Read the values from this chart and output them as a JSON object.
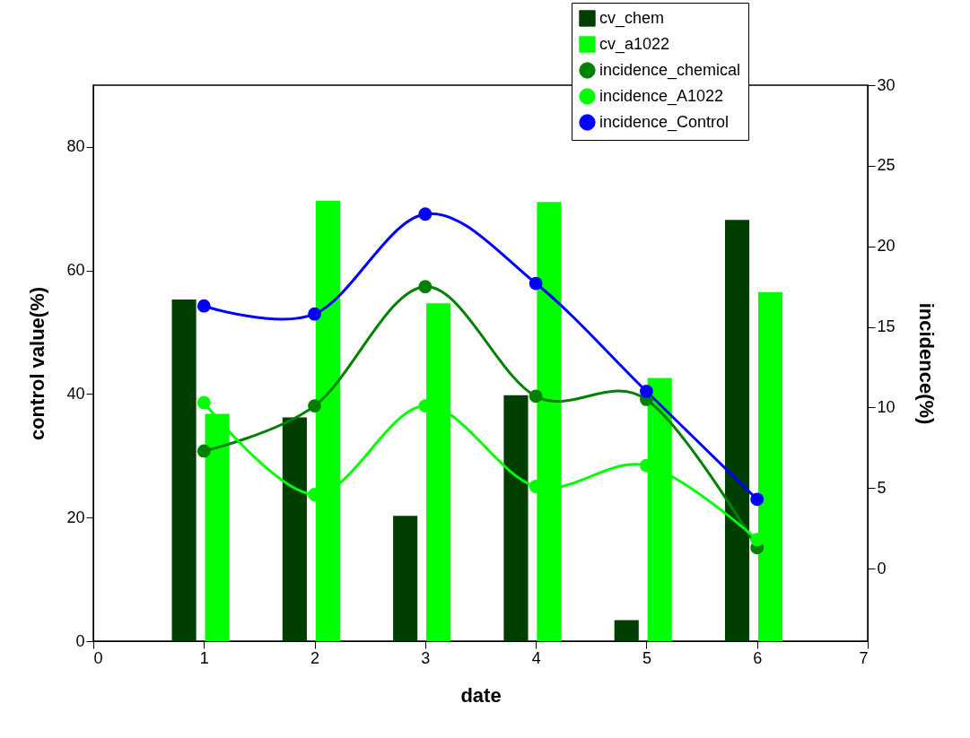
{
  "chart_data": {
    "type": "bar",
    "xlabel": "date",
    "ylabel": "control value(%)",
    "y2label": "incidence(%)",
    "xlim": [
      0,
      7
    ],
    "xticks": [
      0,
      1,
      2,
      3,
      4,
      5,
      6,
      7
    ],
    "ylim": [
      0,
      90
    ],
    "yticks": [
      0,
      20,
      40,
      60,
      80
    ],
    "y2lim": [
      -4.5,
      30
    ],
    "y2ticks": [
      0,
      5,
      10,
      15,
      20,
      25,
      30
    ],
    "legend": "top right",
    "grid": false,
    "marker": "circle",
    "line_style": "solid",
    "series": [
      {
        "name": "cv_chem",
        "color": "#003f00",
        "x": [
          0.82,
          1.82,
          2.82,
          3.82,
          4.82,
          5.82
        ],
        "values": [
          55.3,
          36.2,
          20.3,
          39.8,
          3.4,
          68.2
        ]
      },
      {
        "name": "cv_a1022",
        "color": "#00ff00",
        "x": [
          1.12,
          2.12,
          3.12,
          4.12,
          5.12,
          6.12
        ],
        "values": [
          36.8,
          71.3,
          54.7,
          71.1,
          42.6,
          56.5
        ]
      },
      {
        "name": "incidence_chemical",
        "type": "line",
        "axis": "y2",
        "color": "#008000",
        "x": [
          1,
          2,
          3,
          4,
          5,
          6
        ],
        "values": [
          7.3,
          10.1,
          17.5,
          10.7,
          10.5,
          1.3
        ]
      },
      {
        "name": "incidence_A1022",
        "type": "line",
        "axis": "y2",
        "color": "#00ff00",
        "x": [
          1,
          2,
          3,
          4,
          5,
          6
        ],
        "values": [
          10.3,
          4.6,
          10.1,
          5.1,
          6.4,
          1.8
        ]
      },
      {
        "name": "incidence_Control",
        "type": "line",
        "axis": "y2",
        "color": "#0000ff",
        "x": [
          1,
          2,
          3,
          4,
          5,
          6
        ],
        "values": [
          16.3,
          15.8,
          22.0,
          17.7,
          11.0,
          4.3
        ]
      }
    ]
  }
}
